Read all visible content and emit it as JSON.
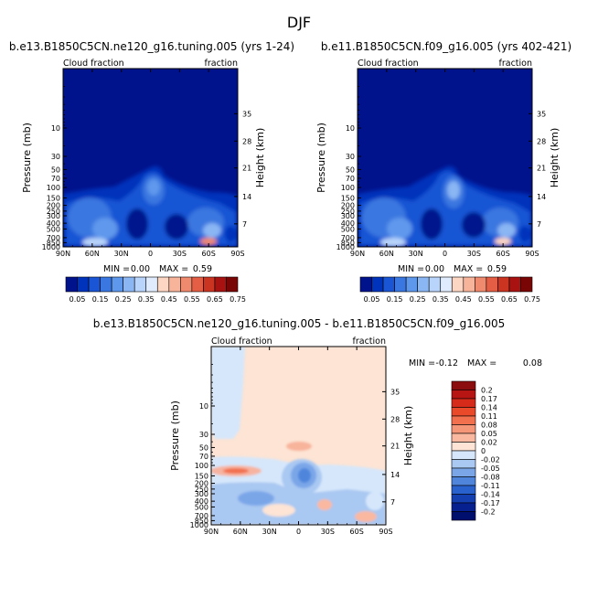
{
  "figure": {
    "title": "DJF",
    "colors": {
      "panel_background": "#00138c",
      "diff_background": "#fde4d4",
      "frame": "#000000"
    }
  },
  "chart_data": [
    {
      "type": "heatmap",
      "title": "b.e13.B1850C5CN.ne120_g16.tuning.005 (yrs 1-24)",
      "left_label": "Cloud fraction",
      "right_label": "fraction",
      "ylabel": "Pressure (mb)",
      "right_axis_label": "Height (km)",
      "x_ticks": [
        "90N",
        "60N",
        "30N",
        "0",
        "30S",
        "60S",
        "90S"
      ],
      "y_ticks": [
        "10",
        "30",
        "50",
        "70",
        "100",
        "150",
        "200",
        "250",
        "300",
        "400",
        "500",
        "700",
        "850",
        "1000"
      ],
      "height_ticks": [
        "35",
        "28",
        "21",
        "14",
        "7"
      ],
      "min_label": "MIN =",
      "min_value": "0.00",
      "max_label": "MAX =",
      "max_value": "0.59",
      "colorbar": [
        "0.05",
        "0.15",
        "0.25",
        "0.35",
        "0.45",
        "0.55",
        "0.65",
        "0.75"
      ],
      "colorbar_colors": [
        "#00138c",
        "#0033bb",
        "#1955d4",
        "#3a77e0",
        "#5e98ec",
        "#8ab6f4",
        "#b8d4fa",
        "#e0ecfd",
        "#fdd6c3",
        "#f8b39b",
        "#f08a6e",
        "#e35e45",
        "#cc3422",
        "#a81210",
        "#7a0505"
      ],
      "min": 0.0,
      "max": 0.59,
      "features": [
        "high values near 850-1000 mb at 30S-60S (~0.45)",
        "clouds 150-1000 mb",
        "tropical high cloud around 70-200 mb near equator"
      ]
    },
    {
      "type": "heatmap",
      "title": "b.e11.B1850C5CN.f09_g16.005 (yrs 402-421)",
      "left_label": "Cloud fraction",
      "right_label": "fraction",
      "ylabel": "Pressure (mb)",
      "right_axis_label": "Height (km)",
      "x_ticks": [
        "90N",
        "60N",
        "30N",
        "0",
        "30S",
        "60S",
        "90S"
      ],
      "y_ticks": [
        "10",
        "30",
        "50",
        "70",
        "100",
        "150",
        "200",
        "250",
        "300",
        "400",
        "500",
        "700",
        "850",
        "1000"
      ],
      "height_ticks": [
        "35",
        "28",
        "21",
        "14",
        "7"
      ],
      "min_label": "MIN =",
      "min_value": "0.00",
      "max_label": "MAX =",
      "max_value": "0.59",
      "colorbar": [
        "0.05",
        "0.15",
        "0.25",
        "0.35",
        "0.45",
        "0.55",
        "0.65",
        "0.75"
      ],
      "min": 0.0,
      "max": 0.59
    },
    {
      "type": "heatmap",
      "title": "b.e13.B1850C5CN.ne120_g16.tuning.005 - b.e11.B1850C5CN.f09_g16.005",
      "left_label": "Cloud fraction",
      "right_label": "fraction",
      "ylabel": "Pressure (mb)",
      "right_axis_label": "Height (km)",
      "x_ticks": [
        "90N",
        "60N",
        "30N",
        "0",
        "30S",
        "60S",
        "90S"
      ],
      "y_ticks": [
        "10",
        "30",
        "50",
        "70",
        "100",
        "150",
        "200",
        "250",
        "300",
        "400",
        "500",
        "700",
        "850",
        "1000"
      ],
      "height_ticks": [
        "35",
        "28",
        "21",
        "14",
        "7"
      ],
      "min_label": "MIN =",
      "min_value": "-0.12",
      "max_label": "MAX =",
      "max_value": "0.08",
      "colorbar": [
        "0.2",
        "0.17",
        "0.14",
        "0.11",
        "0.08",
        "0.05",
        "0.02",
        "0",
        "-0.02",
        "-0.05",
        "-0.08",
        "-0.11",
        "-0.14",
        "-0.17",
        "-0.2"
      ],
      "colorbar_colors": [
        "#8c0d0d",
        "#b71414",
        "#d62b1a",
        "#ea4a2a",
        "#f2704e",
        "#f69678",
        "#fab8a0",
        "#fde4d4",
        "#d6e7fb",
        "#a9c8f2",
        "#7aa6e8",
        "#4f86dc",
        "#2a62cd",
        "#143fb1",
        "#07208f",
        "#000e6e"
      ],
      "min": -0.12,
      "max": 0.08
    }
  ]
}
